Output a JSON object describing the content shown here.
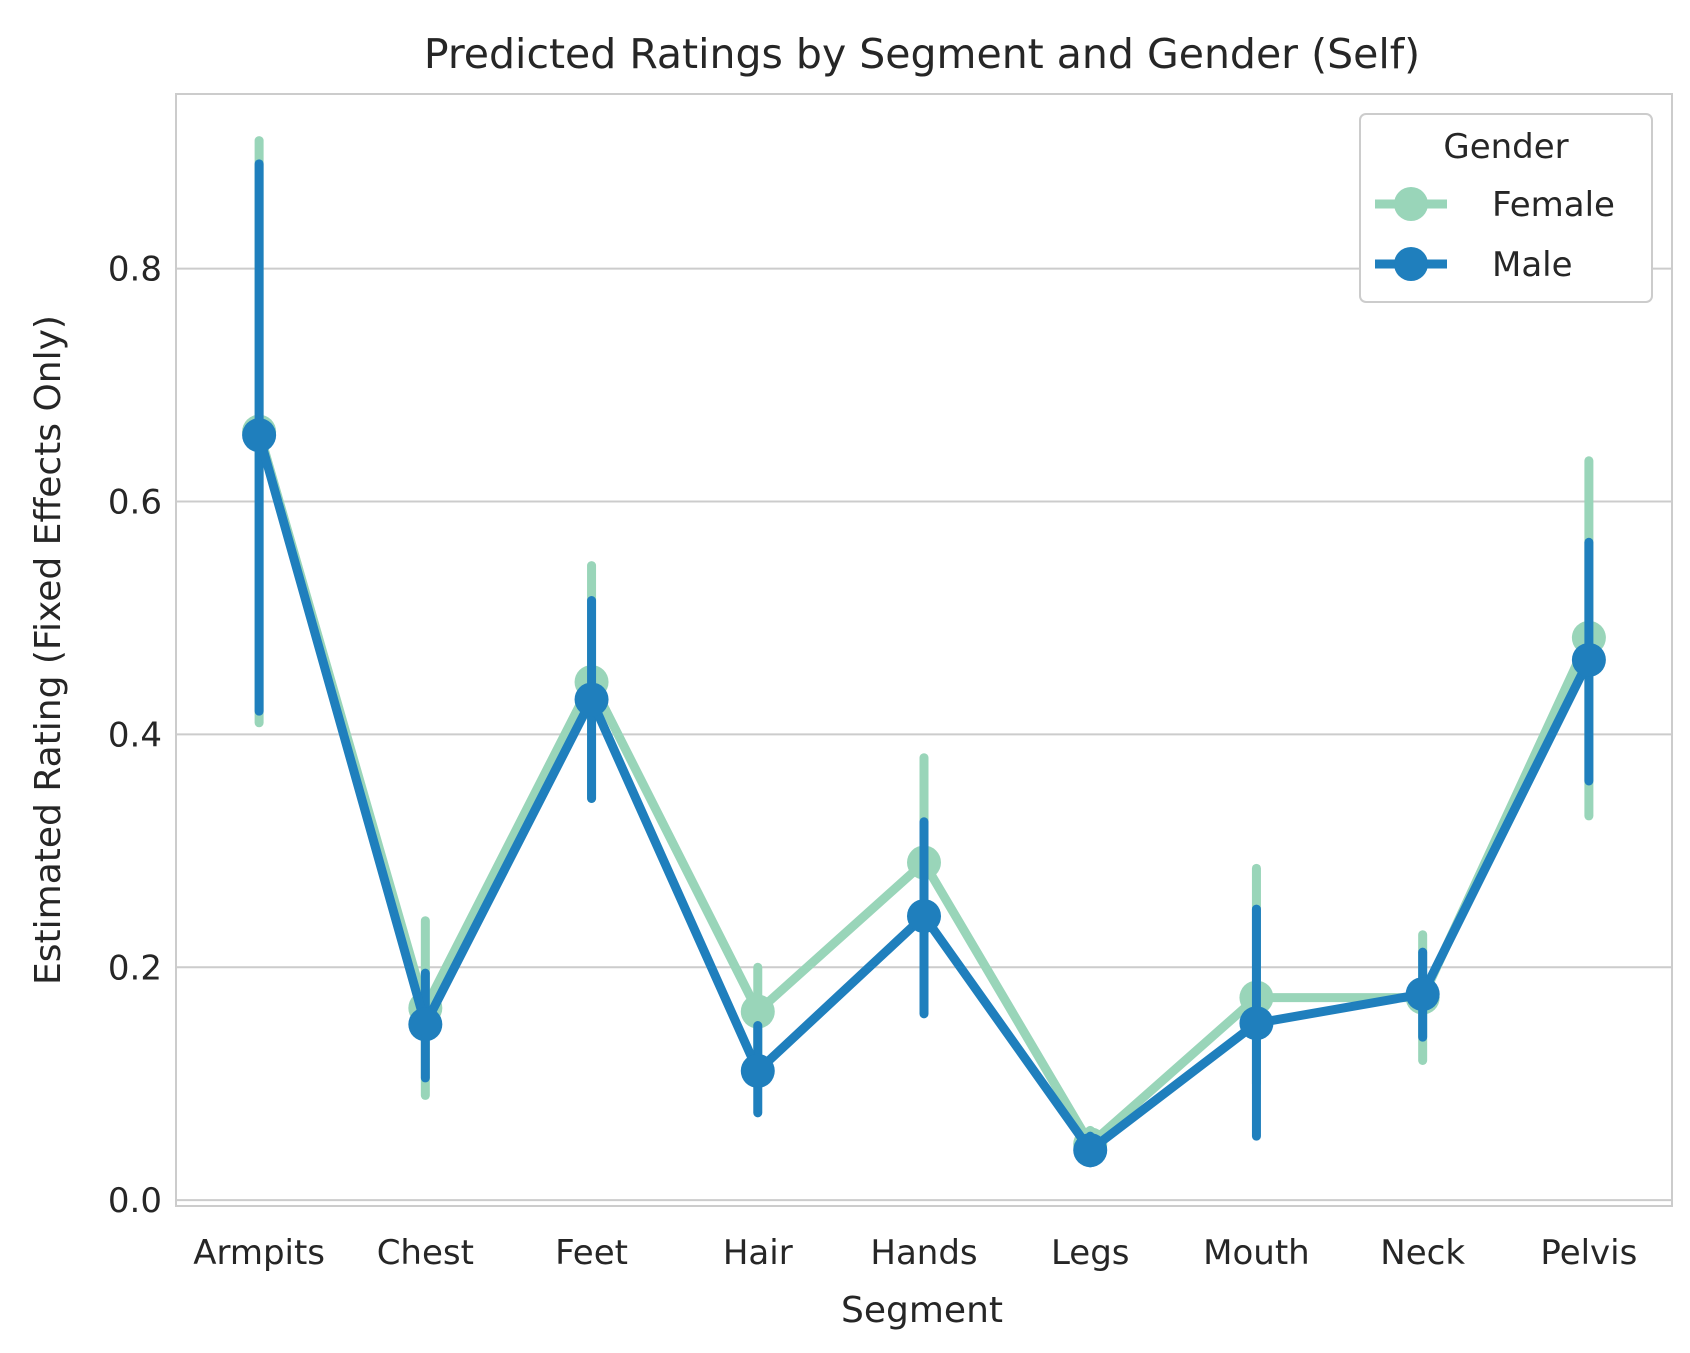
{
  "chart_data": {
    "type": "line",
    "title": "Predicted Ratings by Segment and Gender (Self)",
    "xlabel": "Segment",
    "ylabel": "Estimated Rating (Fixed Effects Only)",
    "ylim": [
      -0.005,
      0.95
    ],
    "yticks": [
      "0.0",
      "0.2",
      "0.4",
      "0.6",
      "0.8"
    ],
    "grid": "horizontal",
    "categories": [
      "Armpits",
      "Chest",
      "Feet",
      "Hair",
      "Hands",
      "Legs",
      "Mouth",
      "Neck",
      "Pelvis"
    ],
    "legend": {
      "title": "Gender",
      "position": "top-right"
    },
    "series": [
      {
        "name": "Female",
        "color": "#99d5b9",
        "values": [
          0.66,
          0.165,
          0.445,
          0.162,
          0.29,
          0.048,
          0.174,
          0.174,
          0.483
        ],
        "ci_low": [
          0.41,
          0.09,
          0.345,
          0.125,
          0.2,
          0.035,
          0.1,
          0.12,
          0.33
        ],
        "ci_high": [
          0.91,
          0.24,
          0.545,
          0.2,
          0.38,
          0.06,
          0.285,
          0.228,
          0.635
        ]
      },
      {
        "name": "Male",
        "color": "#1f7fbd",
        "values": [
          0.657,
          0.151,
          0.43,
          0.111,
          0.244,
          0.043,
          0.152,
          0.177,
          0.464
        ],
        "ci_low": [
          0.42,
          0.105,
          0.345,
          0.075,
          0.16,
          0.032,
          0.055,
          0.14,
          0.36
        ],
        "ci_high": [
          0.89,
          0.195,
          0.515,
          0.15,
          0.325,
          0.055,
          0.25,
          0.213,
          0.565
        ]
      }
    ]
  }
}
